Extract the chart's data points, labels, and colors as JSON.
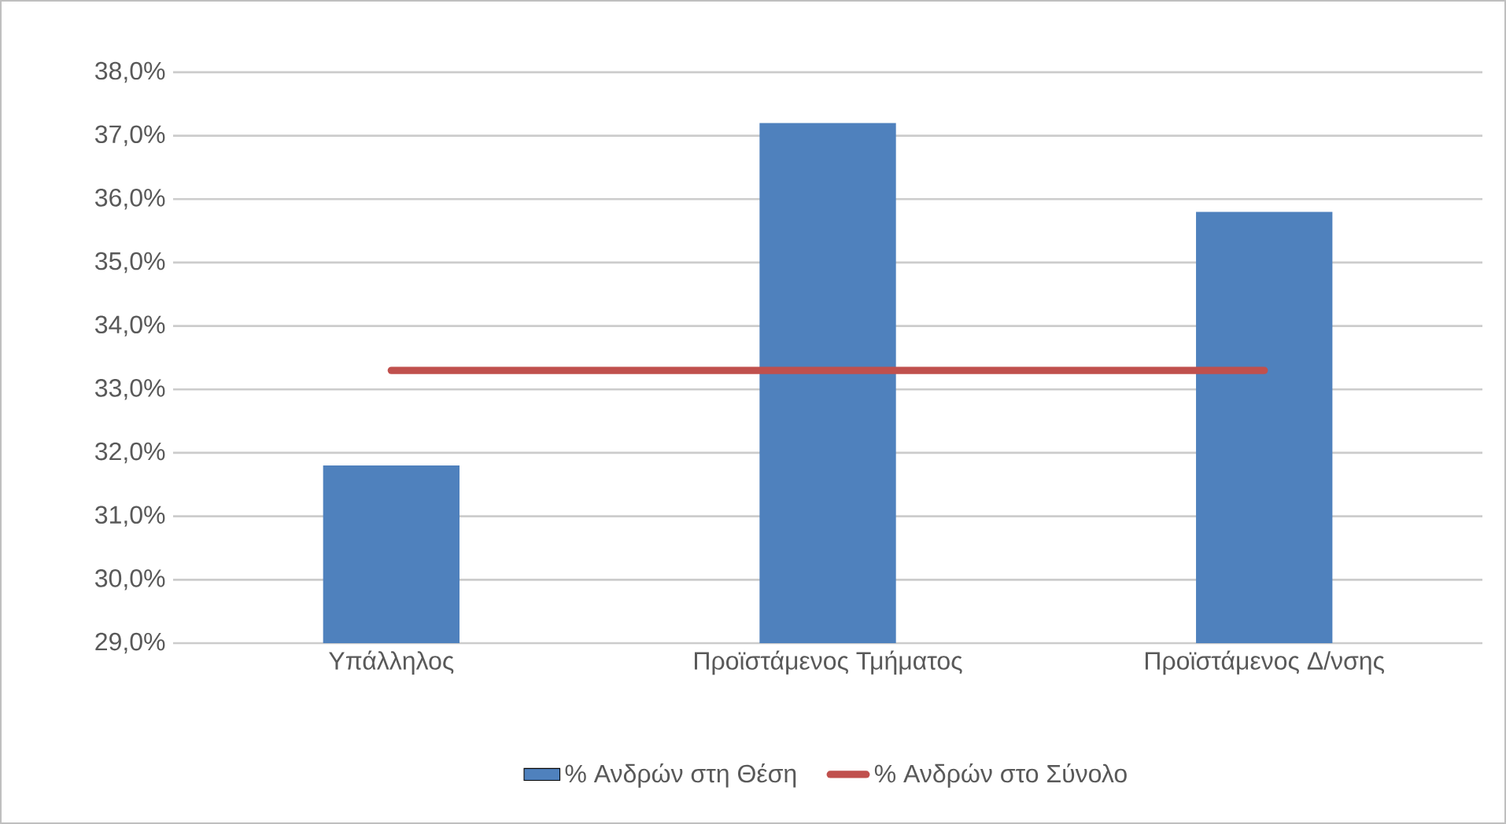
{
  "chart_data": {
    "type": "bar",
    "categories": [
      "Υπάλληλος",
      "Προϊστάμενος Τμήματος",
      "Προϊστάμενος Δ/νσης"
    ],
    "series": [
      {
        "name": "% Ανδρών στη Θέση",
        "color": "#4f81bd",
        "values": [
          31.8,
          37.2,
          35.8
        ]
      },
      {
        "name": "% Ανδρών στο Σύνολο",
        "type": "line",
        "color": "#c0504d",
        "values": [
          33.3,
          33.3,
          33.3
        ]
      }
    ],
    "ylim": [
      29,
      38
    ],
    "yticks": [
      {
        "value": 29,
        "label": "29,0%"
      },
      {
        "value": 30,
        "label": "30,0%"
      },
      {
        "value": 31,
        "label": "31,0%"
      },
      {
        "value": 32,
        "label": "32,0%"
      },
      {
        "value": 33,
        "label": "33,0%"
      },
      {
        "value": 34,
        "label": "34,0%"
      },
      {
        "value": 35,
        "label": "35,0%"
      },
      {
        "value": 36,
        "label": "36,0%"
      },
      {
        "value": 37,
        "label": "37,0%"
      },
      {
        "value": 38,
        "label": "38,0%"
      }
    ],
    "grid": "y",
    "legend": "bottom",
    "marker": "none"
  }
}
